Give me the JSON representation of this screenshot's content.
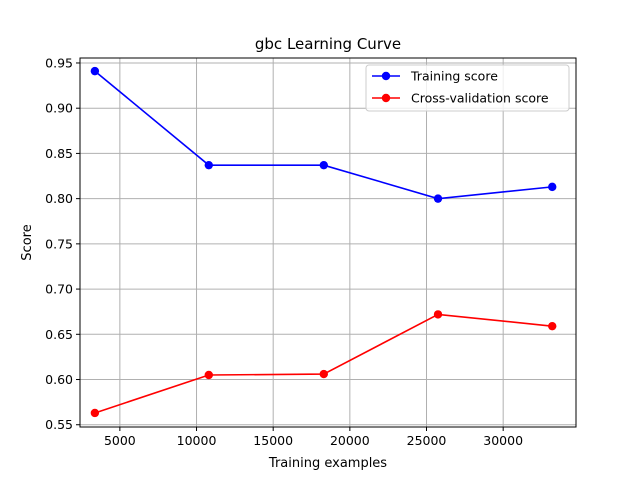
{
  "chart_data": {
    "type": "line",
    "title": "gbc Learning Curve",
    "xlabel": "Training examples",
    "ylabel": "Score",
    "xlim": [
      2400,
      34750
    ],
    "ylim": [
      0.5475,
      0.9555
    ],
    "xticks": [
      5000,
      10000,
      15000,
      20000,
      25000,
      30000
    ],
    "yticks": [
      0.55,
      0.6,
      0.65,
      0.7,
      0.75,
      0.8,
      0.85,
      0.9,
      0.95
    ],
    "xtick_labels": [
      "5000",
      "10000",
      "15000",
      "20000",
      "25000",
      "30000"
    ],
    "ytick_labels": [
      "0.55",
      "0.60",
      "0.65",
      "0.70",
      "0.75",
      "0.80",
      "0.85",
      "0.90",
      "0.95"
    ],
    "grid": true,
    "legend_position": "top-right",
    "x": [
      3370,
      10800,
      18300,
      25750,
      33200
    ],
    "series": [
      {
        "name": "Training score",
        "color": "#0000ff",
        "values": [
          0.941,
          0.837,
          0.837,
          0.8,
          0.813
        ]
      },
      {
        "name": "Cross-validation score",
        "color": "#ff0000",
        "values": [
          0.563,
          0.605,
          0.606,
          0.672,
          0.659
        ]
      }
    ]
  }
}
